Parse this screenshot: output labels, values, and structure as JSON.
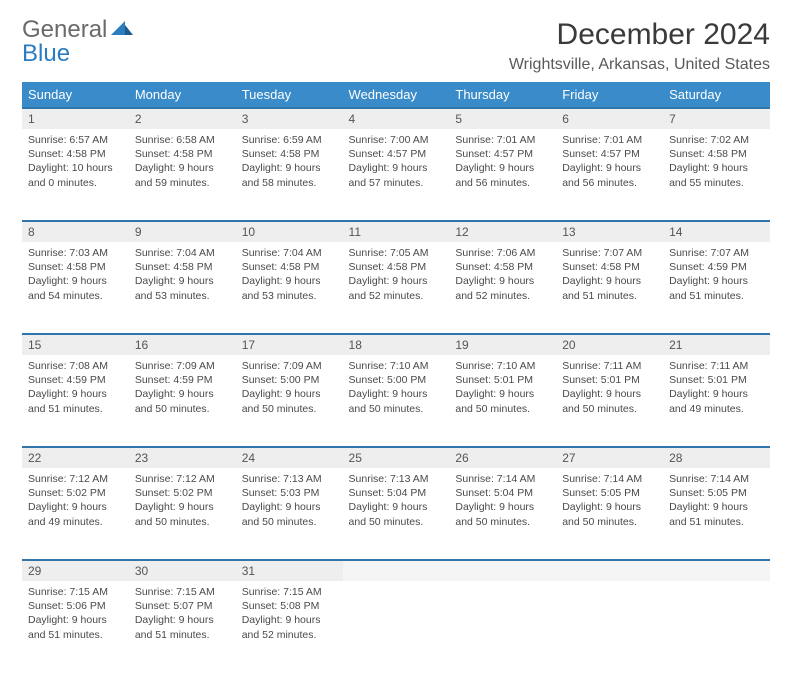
{
  "logo": {
    "text_gray": "General",
    "text_blue": "Blue"
  },
  "title": "December 2024",
  "location": "Wrightsville, Arkansas, United States",
  "colors": {
    "header_bg": "#3a8bc9",
    "header_text": "#ffffff",
    "daynum_bg": "#eeeeee",
    "row_border": "#2f74aa",
    "body_text": "#4a4a4a",
    "logo_gray": "#6a6a6a",
    "logo_blue": "#2a7dc0"
  },
  "weekdays": [
    "Sunday",
    "Monday",
    "Tuesday",
    "Wednesday",
    "Thursday",
    "Friday",
    "Saturday"
  ],
  "weeks": [
    [
      {
        "n": "1",
        "sr": "6:57 AM",
        "ss": "4:58 PM",
        "d": "10 hours and 0 minutes."
      },
      {
        "n": "2",
        "sr": "6:58 AM",
        "ss": "4:58 PM",
        "d": "9 hours and 59 minutes."
      },
      {
        "n": "3",
        "sr": "6:59 AM",
        "ss": "4:58 PM",
        "d": "9 hours and 58 minutes."
      },
      {
        "n": "4",
        "sr": "7:00 AM",
        "ss": "4:57 PM",
        "d": "9 hours and 57 minutes."
      },
      {
        "n": "5",
        "sr": "7:01 AM",
        "ss": "4:57 PM",
        "d": "9 hours and 56 minutes."
      },
      {
        "n": "6",
        "sr": "7:01 AM",
        "ss": "4:57 PM",
        "d": "9 hours and 56 minutes."
      },
      {
        "n": "7",
        "sr": "7:02 AM",
        "ss": "4:58 PM",
        "d": "9 hours and 55 minutes."
      }
    ],
    [
      {
        "n": "8",
        "sr": "7:03 AM",
        "ss": "4:58 PM",
        "d": "9 hours and 54 minutes."
      },
      {
        "n": "9",
        "sr": "7:04 AM",
        "ss": "4:58 PM",
        "d": "9 hours and 53 minutes."
      },
      {
        "n": "10",
        "sr": "7:04 AM",
        "ss": "4:58 PM",
        "d": "9 hours and 53 minutes."
      },
      {
        "n": "11",
        "sr": "7:05 AM",
        "ss": "4:58 PM",
        "d": "9 hours and 52 minutes."
      },
      {
        "n": "12",
        "sr": "7:06 AM",
        "ss": "4:58 PM",
        "d": "9 hours and 52 minutes."
      },
      {
        "n": "13",
        "sr": "7:07 AM",
        "ss": "4:58 PM",
        "d": "9 hours and 51 minutes."
      },
      {
        "n": "14",
        "sr": "7:07 AM",
        "ss": "4:59 PM",
        "d": "9 hours and 51 minutes."
      }
    ],
    [
      {
        "n": "15",
        "sr": "7:08 AM",
        "ss": "4:59 PM",
        "d": "9 hours and 51 minutes."
      },
      {
        "n": "16",
        "sr": "7:09 AM",
        "ss": "4:59 PM",
        "d": "9 hours and 50 minutes."
      },
      {
        "n": "17",
        "sr": "7:09 AM",
        "ss": "5:00 PM",
        "d": "9 hours and 50 minutes."
      },
      {
        "n": "18",
        "sr": "7:10 AM",
        "ss": "5:00 PM",
        "d": "9 hours and 50 minutes."
      },
      {
        "n": "19",
        "sr": "7:10 AM",
        "ss": "5:01 PM",
        "d": "9 hours and 50 minutes."
      },
      {
        "n": "20",
        "sr": "7:11 AM",
        "ss": "5:01 PM",
        "d": "9 hours and 50 minutes."
      },
      {
        "n": "21",
        "sr": "7:11 AM",
        "ss": "5:01 PM",
        "d": "9 hours and 49 minutes."
      }
    ],
    [
      {
        "n": "22",
        "sr": "7:12 AM",
        "ss": "5:02 PM",
        "d": "9 hours and 49 minutes."
      },
      {
        "n": "23",
        "sr": "7:12 AM",
        "ss": "5:02 PM",
        "d": "9 hours and 50 minutes."
      },
      {
        "n": "24",
        "sr": "7:13 AM",
        "ss": "5:03 PM",
        "d": "9 hours and 50 minutes."
      },
      {
        "n": "25",
        "sr": "7:13 AM",
        "ss": "5:04 PM",
        "d": "9 hours and 50 minutes."
      },
      {
        "n": "26",
        "sr": "7:14 AM",
        "ss": "5:04 PM",
        "d": "9 hours and 50 minutes."
      },
      {
        "n": "27",
        "sr": "7:14 AM",
        "ss": "5:05 PM",
        "d": "9 hours and 50 minutes."
      },
      {
        "n": "28",
        "sr": "7:14 AM",
        "ss": "5:05 PM",
        "d": "9 hours and 51 minutes."
      }
    ],
    [
      {
        "n": "29",
        "sr": "7:15 AM",
        "ss": "5:06 PM",
        "d": "9 hours and 51 minutes."
      },
      {
        "n": "30",
        "sr": "7:15 AM",
        "ss": "5:07 PM",
        "d": "9 hours and 51 minutes."
      },
      {
        "n": "31",
        "sr": "7:15 AM",
        "ss": "5:08 PM",
        "d": "9 hours and 52 minutes."
      },
      null,
      null,
      null,
      null
    ]
  ],
  "labels": {
    "sunrise": "Sunrise:",
    "sunset": "Sunset:",
    "daylight": "Daylight:"
  }
}
